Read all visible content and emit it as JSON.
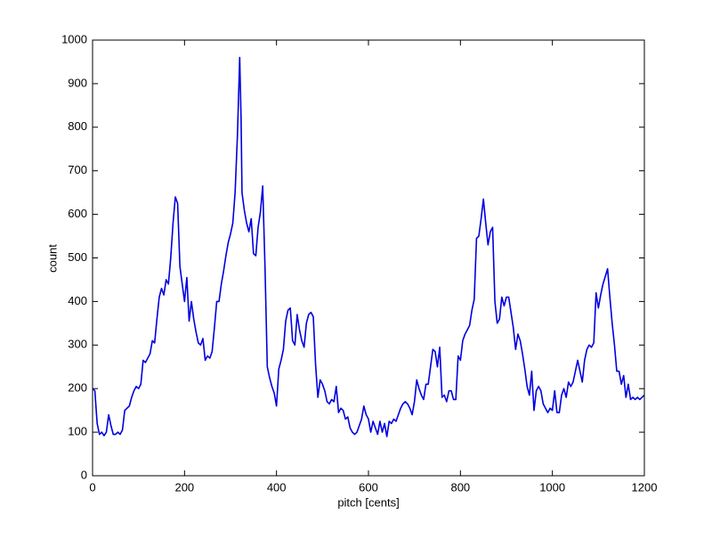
{
  "chart_data": {
    "type": "line",
    "xlabel": "pitch [cents]",
    "ylabel": "count",
    "xlim": [
      0,
      1200
    ],
    "ylim": [
      0,
      1000
    ],
    "xticks": [
      0,
      200,
      400,
      600,
      800,
      1000,
      1200
    ],
    "yticks": [
      0,
      100,
      200,
      300,
      400,
      500,
      600,
      700,
      800,
      900,
      1000
    ],
    "x": [
      0,
      5,
      10,
      15,
      20,
      25,
      30,
      35,
      40,
      45,
      50,
      55,
      60,
      65,
      70,
      75,
      80,
      85,
      90,
      95,
      100,
      105,
      110,
      115,
      120,
      125,
      130,
      135,
      140,
      145,
      150,
      155,
      160,
      165,
      170,
      175,
      180,
      185,
      190,
      195,
      200,
      205,
      210,
      215,
      220,
      225,
      230,
      235,
      240,
      245,
      250,
      255,
      260,
      265,
      270,
      275,
      280,
      285,
      290,
      295,
      300,
      305,
      310,
      315,
      320,
      323,
      325,
      330,
      335,
      340,
      345,
      350,
      355,
      360,
      365,
      370,
      375,
      380,
      385,
      390,
      395,
      400,
      405,
      410,
      415,
      420,
      425,
      430,
      435,
      440,
      445,
      450,
      455,
      460,
      465,
      470,
      475,
      480,
      485,
      490,
      495,
      500,
      505,
      510,
      515,
      520,
      525,
      530,
      535,
      540,
      545,
      550,
      555,
      560,
      565,
      570,
      575,
      580,
      585,
      590,
      595,
      600,
      605,
      610,
      615,
      620,
      625,
      630,
      635,
      640,
      645,
      650,
      655,
      660,
      665,
      670,
      675,
      680,
      685,
      690,
      695,
      700,
      705,
      710,
      715,
      720,
      725,
      730,
      735,
      740,
      745,
      750,
      755,
      760,
      765,
      770,
      775,
      780,
      785,
      790,
      795,
      800,
      805,
      810,
      815,
      820,
      825,
      830,
      835,
      840,
      845,
      850,
      855,
      860,
      865,
      870,
      875,
      880,
      885,
      890,
      895,
      900,
      905,
      910,
      915,
      920,
      925,
      930,
      935,
      940,
      945,
      950,
      955,
      960,
      965,
      970,
      975,
      980,
      985,
      990,
      995,
      1000,
      1005,
      1010,
      1015,
      1020,
      1025,
      1030,
      1035,
      1040,
      1045,
      1050,
      1055,
      1060,
      1065,
      1070,
      1075,
      1080,
      1085,
      1090,
      1095,
      1100,
      1105,
      1110,
      1120,
      1125,
      1130,
      1135,
      1140,
      1145,
      1150,
      1155,
      1160,
      1165,
      1170,
      1175,
      1180,
      1185,
      1190,
      1195,
      1200
    ],
    "series": [
      {
        "name": "count",
        "color": "#0000e0",
        "values": [
          200,
          195,
          120,
          95,
          100,
          92,
          100,
          140,
          115,
          95,
          95,
          100,
          95,
          105,
          150,
          155,
          160,
          180,
          195,
          205,
          200,
          210,
          265,
          260,
          270,
          280,
          310,
          305,
          360,
          410,
          430,
          415,
          450,
          440,
          500,
          580,
          640,
          625,
          480,
          440,
          400,
          455,
          355,
          400,
          360,
          330,
          305,
          300,
          315,
          265,
          275,
          270,
          285,
          340,
          400,
          400,
          440,
          470,
          505,
          535,
          555,
          580,
          650,
          780,
          960,
          820,
          650,
          610,
          580,
          560,
          590,
          510,
          505,
          570,
          605,
          665,
          480,
          250,
          225,
          205,
          190,
          160,
          245,
          265,
          290,
          355,
          380,
          385,
          310,
          300,
          370,
          335,
          310,
          295,
          350,
          370,
          375,
          365,
          255,
          180,
          220,
          210,
          195,
          170,
          165,
          175,
          170,
          205,
          145,
          155,
          150,
          130,
          135,
          110,
          100,
          95,
          100,
          115,
          130,
          160,
          140,
          130,
          100,
          125,
          110,
          95,
          125,
          100,
          120,
          90,
          125,
          120,
          130,
          125,
          140,
          155,
          165,
          170,
          165,
          155,
          140,
          170,
          220,
          200,
          185,
          175,
          210,
          210,
          250,
          290,
          285,
          250,
          295,
          180,
          185,
          170,
          195,
          195,
          175,
          175,
          275,
          265,
          310,
          325,
          335,
          345,
          380,
          405,
          545,
          550,
          590,
          635,
          580,
          530,
          560,
          570,
          400,
          350,
          360,
          410,
          390,
          410,
          410,
          375,
          340,
          290,
          325,
          310,
          280,
          245,
          205,
          185,
          240,
          150,
          195,
          205,
          195,
          165,
          155,
          145,
          155,
          150,
          195,
          145,
          145,
          185,
          200,
          180,
          215,
          205,
          215,
          240,
          265,
          240,
          215,
          265,
          290,
          300,
          295,
          305,
          420,
          385,
          415,
          440,
          475,
          410,
          350,
          300,
          240,
          240,
          210,
          230,
          180,
          210,
          175,
          180,
          175,
          180,
          175,
          180,
          185
        ]
      }
    ]
  }
}
